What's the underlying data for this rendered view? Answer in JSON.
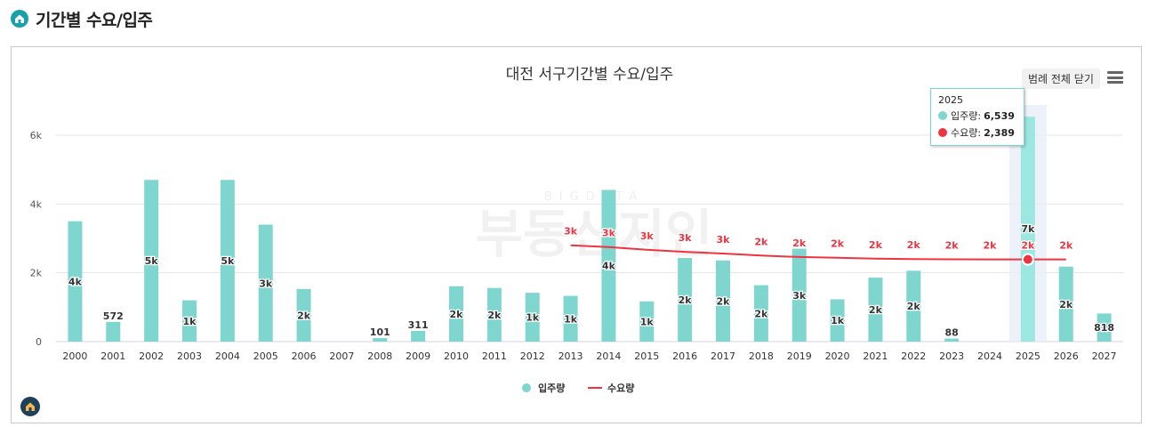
{
  "header": {
    "title": "기간별 수요/입주",
    "icon": "home-icon"
  },
  "toolbar": {
    "legend_toggle_label": "범례 전체 닫기",
    "menu_icon": "hamburger-menu-icon"
  },
  "watermark": {
    "top": "BIGDATA",
    "bottom": "부동산지인"
  },
  "tooltip": {
    "year": "2025",
    "rows": [
      {
        "label": "입주량:",
        "value": "6,539",
        "color": "#7ed6cf"
      },
      {
        "label": "수요량:",
        "value": "2,389",
        "color": "#ef3340"
      }
    ]
  },
  "colors": {
    "supply": "#7ed6cf",
    "supply_highlight": "#9de7e1",
    "demand": "#ef3340"
  },
  "chart_data": {
    "type": "bar",
    "title": "대전 서구기간별 수요/입주",
    "categories": [
      "2000",
      "2001",
      "2002",
      "2003",
      "2004",
      "2005",
      "2006",
      "2007",
      "2008",
      "2009",
      "2010",
      "2011",
      "2012",
      "2013",
      "2014",
      "2015",
      "2016",
      "2017",
      "2018",
      "2019",
      "2020",
      "2021",
      "2022",
      "2023",
      "2024",
      "2025",
      "2026",
      "2027"
    ],
    "series": [
      {
        "name": "입주량",
        "type": "bar",
        "values": [
          3500,
          572,
          4700,
          1200,
          4700,
          3400,
          1530,
          0,
          101,
          311,
          1610,
          1560,
          1420,
          1330,
          4410,
          1170,
          2430,
          2360,
          1640,
          2700,
          1230,
          1860,
          2060,
          88,
          0,
          6539,
          2180,
          818
        ],
        "labels": [
          "4k",
          "572",
          "5k",
          "1k",
          "5k",
          "3k",
          "2k",
          "",
          "101",
          "311",
          "2k",
          "2k",
          "1k",
          "1k",
          "4k",
          "1k",
          "2k",
          "2k",
          "2k",
          "3k",
          "1k",
          "2k",
          "2k",
          "88",
          "",
          "7k",
          "2k",
          "818"
        ]
      },
      {
        "name": "수요량",
        "type": "line",
        "values": [
          null,
          null,
          null,
          null,
          null,
          null,
          null,
          null,
          null,
          null,
          null,
          null,
          null,
          2800,
          2750,
          2670,
          2610,
          2560,
          2500,
          2460,
          2440,
          2410,
          2400,
          2392,
          2390,
          2389,
          2389,
          null
        ],
        "labels": [
          "",
          "",
          "",
          "",
          "",
          "",
          "",
          "",
          "",
          "",
          "",
          "",
          "",
          "3k",
          "3k",
          "3k",
          "3k",
          "3k",
          "2k",
          "2k",
          "2k",
          "2k",
          "2k",
          "2k",
          "2k",
          "2k",
          "2k",
          ""
        ]
      }
    ],
    "yticks": [
      "0",
      "2k",
      "4k",
      "6k"
    ],
    "ytick_values": [
      0,
      2000,
      4000,
      6000
    ],
    "ylim": [
      0,
      6000
    ],
    "highlight_category": "2025",
    "legend": {
      "position": "bottom-center",
      "items": [
        "입주량",
        "수요량"
      ]
    },
    "grid": true
  }
}
